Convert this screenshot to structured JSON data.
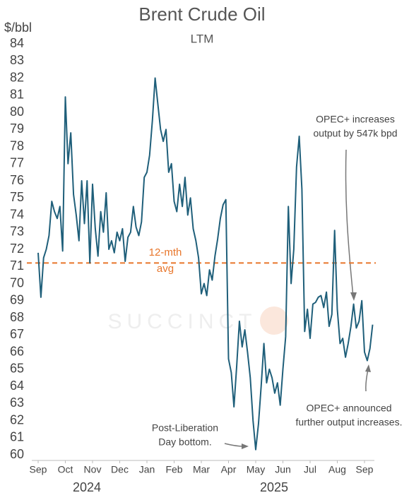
{
  "chart_data": {
    "type": "line",
    "title": "Brent Crude Oil",
    "subtitle": "LTM",
    "y_label": "$/bbl",
    "watermark": "SUCCINCT",
    "categories": [
      "Sep",
      null,
      null,
      null,
      null,
      null,
      null,
      null,
      null,
      null,
      "Oct",
      null,
      null,
      null,
      null,
      null,
      null,
      null,
      null,
      null,
      "Nov",
      null,
      null,
      null,
      null,
      null,
      null,
      null,
      null,
      null,
      "Dec",
      null,
      null,
      null,
      null,
      null,
      null,
      null,
      null,
      null,
      "Jan",
      null,
      null,
      null,
      null,
      null,
      null,
      null,
      null,
      null,
      "Feb",
      null,
      null,
      null,
      null,
      null,
      null,
      null,
      null,
      null,
      "Mar",
      null,
      null,
      null,
      null,
      null,
      null,
      null,
      null,
      null,
      "Apr",
      null,
      null,
      null,
      null,
      null,
      null,
      null,
      null,
      null,
      "May",
      null,
      null,
      null,
      null,
      null,
      null,
      null,
      null,
      null,
      "Jun",
      null,
      null,
      null,
      null,
      null,
      null,
      null,
      null,
      null,
      "Jul",
      null,
      null,
      null,
      null,
      null,
      null,
      null,
      null,
      null,
      "Aug",
      null,
      null,
      null,
      null,
      null,
      null,
      null,
      null,
      null,
      "Sep",
      null,
      null,
      null
    ],
    "years": [
      "2024",
      "2025"
    ],
    "series": [
      {
        "name": "Brent",
        "color": "#1f5f7a",
        "values": [
          71.8,
          69.2,
          71.5,
          72.0,
          72.8,
          74.8,
          74.2,
          73.8,
          74.5,
          71.9,
          80.9,
          77.0,
          78.8,
          75.2,
          74.0,
          72.5,
          76.0,
          73.5,
          76.0,
          71.2,
          75.8,
          73.2,
          71.6,
          74.2,
          73.0,
          75.3,
          72.0,
          72.5,
          71.8,
          73.0,
          72.5,
          73.2,
          71.3,
          72.7,
          73.0,
          74.5,
          73.3,
          72.8,
          73.6,
          76.2,
          76.5,
          77.5,
          79.5,
          82.0,
          80.5,
          79.0,
          78.3,
          79.0,
          76.5,
          77.0,
          74.8,
          74.2,
          75.8,
          74.5,
          76.2,
          74.0,
          75.0,
          73.2,
          72.5,
          71.5,
          69.4,
          70.0,
          69.3,
          70.8,
          70.2,
          71.6,
          72.6,
          73.8,
          74.6,
          74.9,
          65.6,
          64.8,
          62.8,
          65.2,
          67.8,
          66.3,
          67.3,
          66.0,
          64.5,
          62.0,
          60.3,
          61.8,
          64.0,
          66.5,
          64.2,
          65.0,
          64.5,
          63.6,
          64.2,
          62.9,
          65.0,
          66.9,
          74.5,
          70.0,
          72.0,
          76.8,
          78.6,
          75.5,
          67.2,
          68.5,
          66.8,
          68.8,
          68.9,
          69.2,
          69.3,
          68.6,
          69.5,
          67.5,
          68.2,
          73.1,
          68.5,
          66.5,
          66.8,
          65.7,
          66.5,
          67.5,
          68.8,
          67.4,
          67.8,
          69.0,
          66.0,
          65.5,
          66.2,
          67.6
        ]
      }
    ],
    "reference_line": {
      "value": 71.2,
      "color": "#e8762b",
      "label": [
        "12-mth",
        "avg"
      ]
    },
    "annotations": [
      {
        "text": [
          "OPEC+ increases",
          "output by 547k bpd"
        ]
      },
      {
        "text": [
          "OPEC+ announced",
          "further output increases."
        ]
      },
      {
        "text": [
          "Post-Liberation",
          "Day bottom."
        ]
      }
    ],
    "ylim": [
      60,
      84
    ],
    "yticks": [
      60,
      61,
      62,
      63,
      64,
      65,
      66,
      67,
      68,
      69,
      70,
      71,
      72,
      73,
      74,
      75,
      76,
      77,
      78,
      79,
      80,
      81,
      82,
      83,
      84
    ],
    "grid": false
  }
}
